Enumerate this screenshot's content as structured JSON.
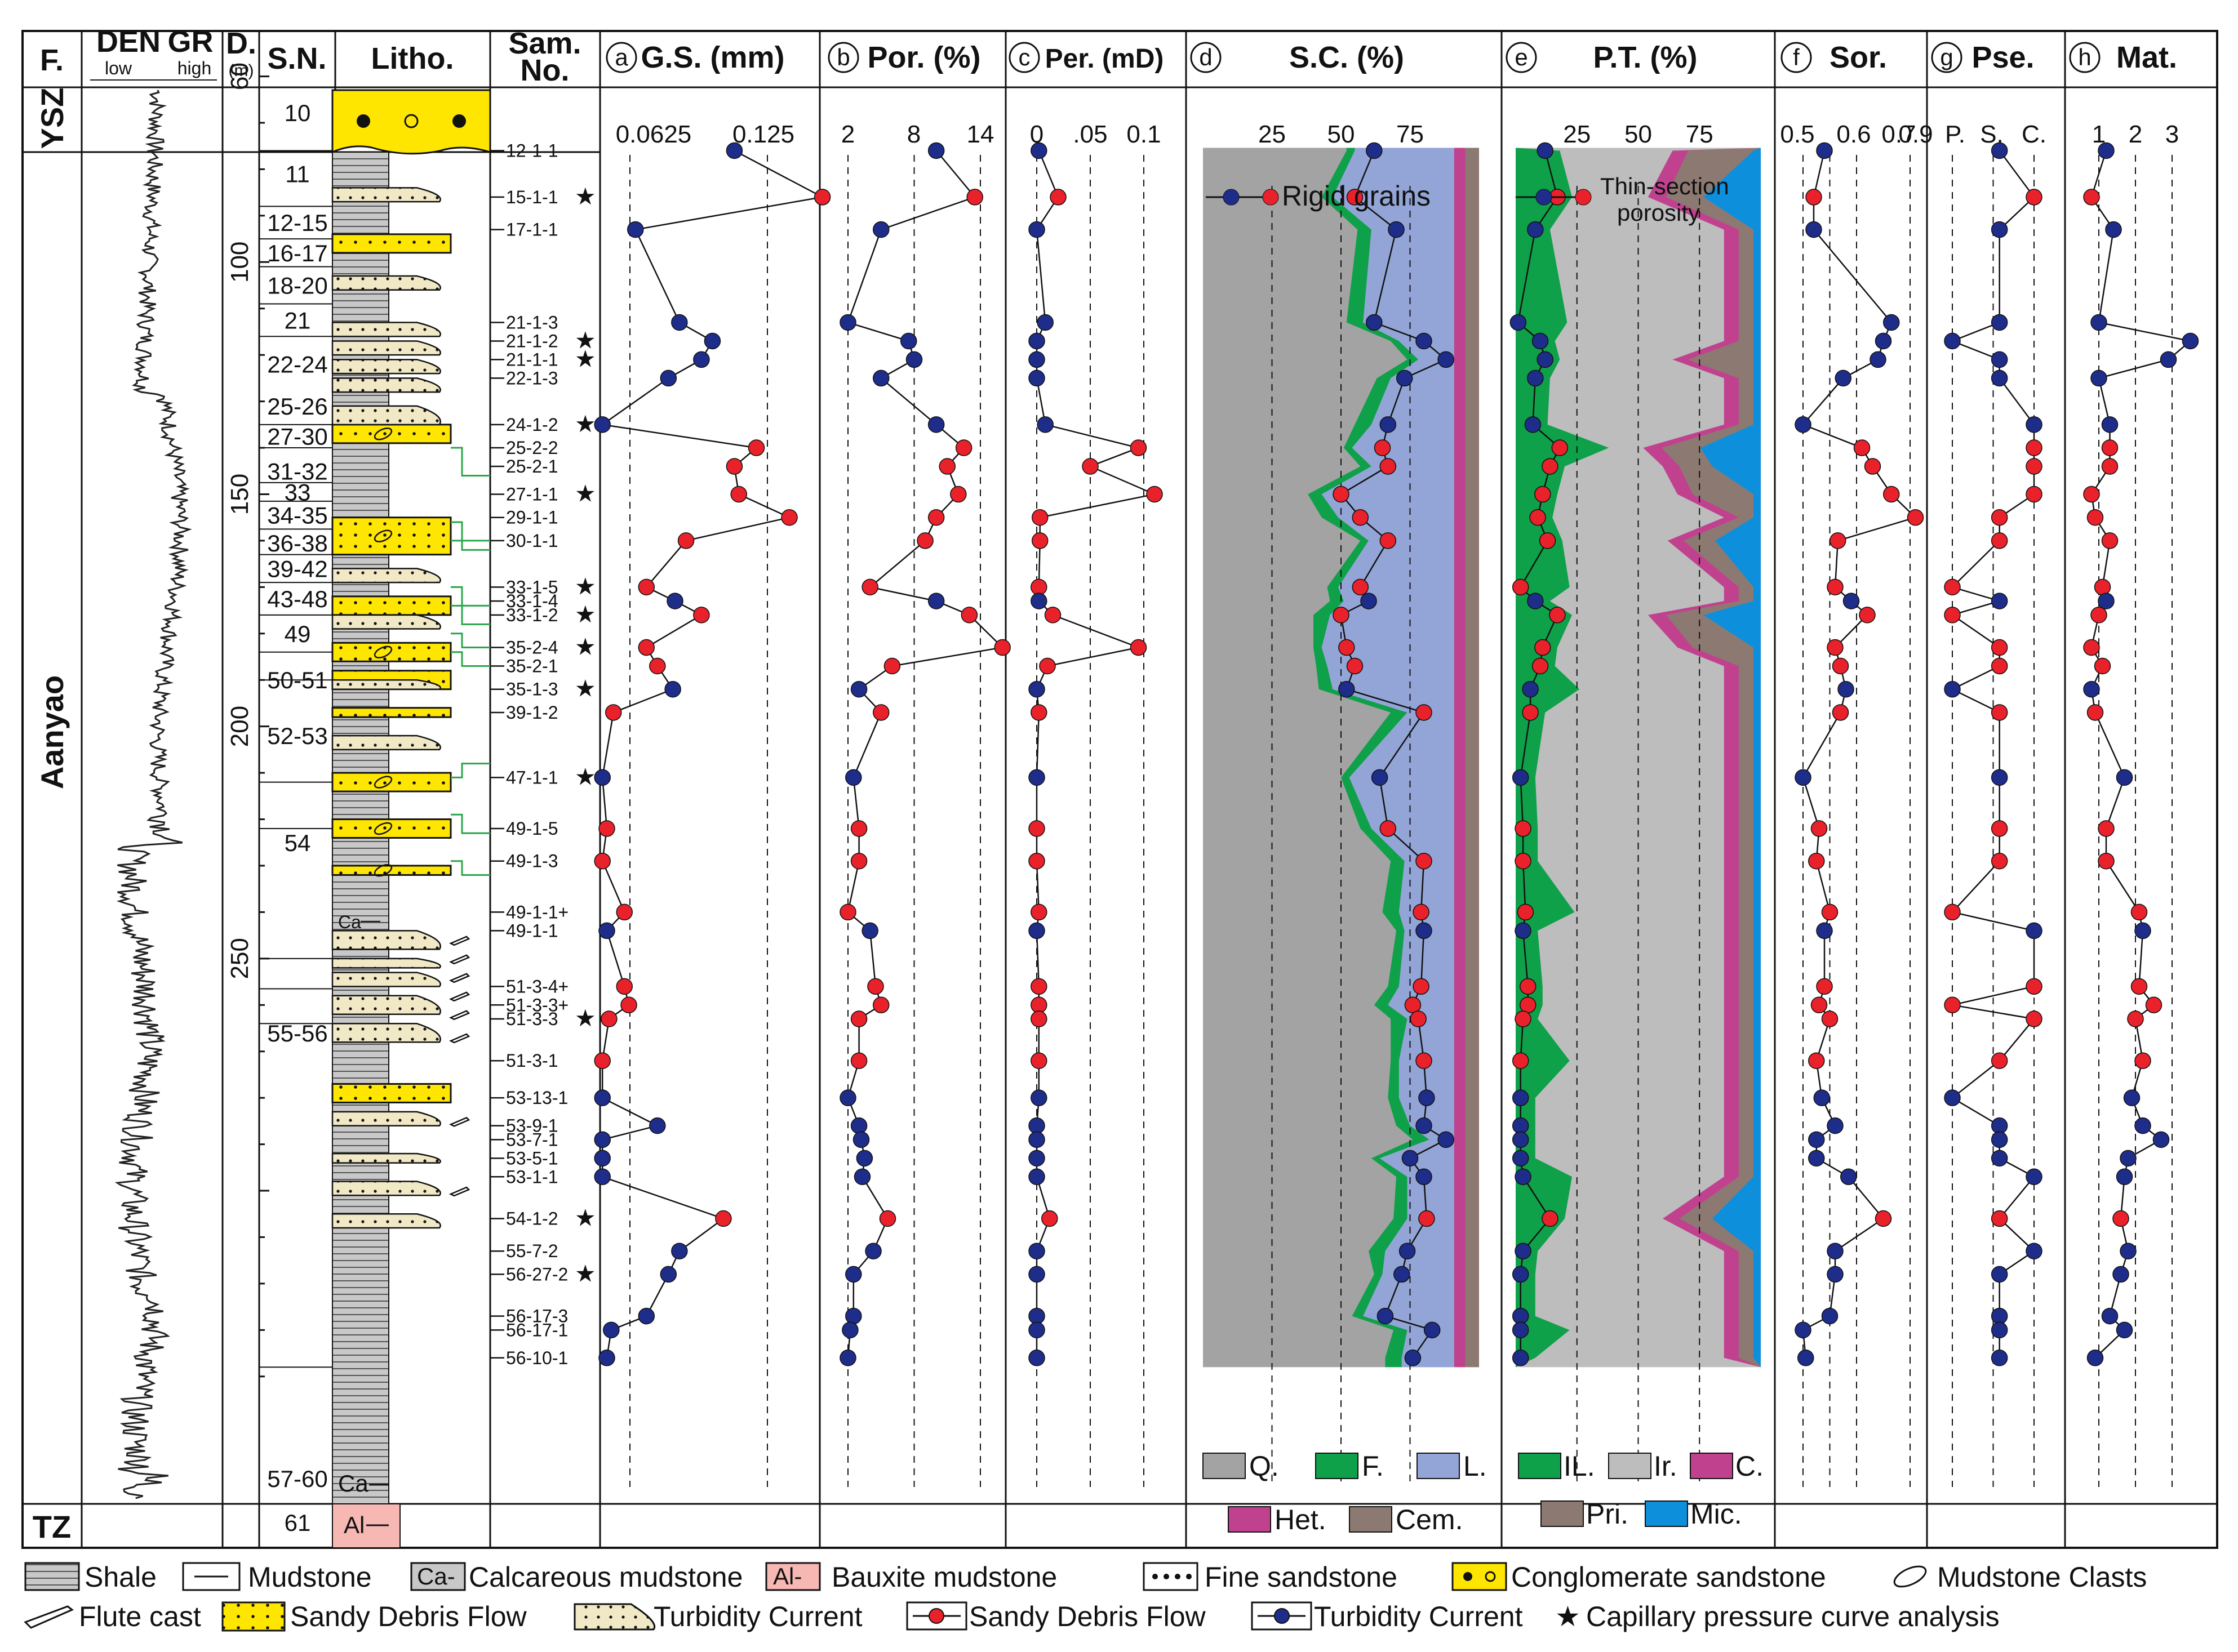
{
  "header": {
    "formation": "F.",
    "den": "DEN",
    "gr": "GR",
    "low": "low",
    "high": "high",
    "depth": "D.",
    "depth_unit": "(m)",
    "sn": "S.N.",
    "litho": "Litho.",
    "sample1": "Sam.",
    "sample2": "No.",
    "gs": {
      "letter": "a",
      "title": "G.S. (mm)"
    },
    "por": {
      "letter": "b",
      "title": "Por. (%)"
    },
    "per": {
      "letter": "c",
      "title": "Per. (mD)"
    },
    "sc": {
      "letter": "d",
      "title": "S.C. (%)"
    },
    "pt": {
      "letter": "e",
      "title": "P.T. (%)"
    },
    "sor": {
      "letter": "f",
      "title": "Sor."
    },
    "pse": {
      "letter": "g",
      "title": "Pse."
    },
    "mat": {
      "letter": "h",
      "title": "Mat."
    }
  },
  "formations": [
    {
      "name": "YSZ"
    },
    {
      "name": "Aanyao"
    },
    {
      "name": "TZ"
    }
  ],
  "tick_labels": {
    "gs": [
      "0.0625",
      "0.125"
    ],
    "por": [
      "2",
      "8",
      "14"
    ],
    "per": [
      "0",
      ".05",
      "0.1"
    ],
    "sc": [
      "25",
      "50",
      "75"
    ],
    "pt": [
      "25",
      "50",
      "75"
    ],
    "sor": [
      "0.5",
      "0.6",
      "0.7",
      "0.9"
    ],
    "pse": [
      "P.",
      "S.",
      "C."
    ],
    "mat": [
      "1",
      "2",
      "3"
    ],
    "depth": [
      "60",
      "100",
      "150",
      "200",
      "250"
    ]
  },
  "sn_labels": [
    "10",
    "11",
    "12-15",
    "16-17",
    "18-20",
    "21",
    "22-24",
    "25-26",
    "27-30",
    "31-32",
    "33",
    "34-35",
    "36-38",
    "39-42",
    "43-48",
    "49",
    "50-51",
    "52-53",
    "54",
    "55-56",
    "57-60",
    "61"
  ],
  "litho_text": {
    "ca": "Ca",
    "al": "Al"
  },
  "samples": [
    "12-1-1",
    "15-1-1",
    "17-1-1",
    "21-1-3",
    "21-1-2",
    "21-1-1",
    "22-1-3",
    "24-1-2",
    "25-2-2",
    "25-2-1",
    "27-1-1",
    "29-1-1",
    "30-1-1",
    "33-1-5",
    "33-1-4",
    "33-1-2",
    "35-2-4",
    "35-2-1",
    "35-1-3",
    "39-1-2",
    "47-1-1",
    "49-1-5",
    "49-1-3",
    "49-1-1+",
    "49-1-1",
    "51-3-4+",
    "51-3-3+",
    "51-3-3",
    "51-3-1",
    "53-13-1",
    "53-9-1",
    "53-7-1",
    "53-5-1",
    "53-1-1",
    "54-1-2",
    "55-7-2",
    "56-27-2",
    "56-17-3",
    "56-17-1",
    "56-10-1"
  ],
  "star_glyph": "★",
  "panel_legends": {
    "rigid": "Rigid grains",
    "thin1": "Thin-section",
    "thin2": "porosity",
    "sc_items": [
      "Q.",
      "F.",
      "L.",
      "Het.",
      "Cem."
    ],
    "pt_items": [
      "IL.",
      "Ir.",
      "C.",
      "Pri.",
      "Mic."
    ]
  },
  "legend": {
    "row1": [
      "Shale",
      "Mudstone",
      "Calcareous mudstone",
      "Bauxite mudstone",
      "Fine sandstone",
      "Conglomerate sandstone",
      "Mudstone Clasts"
    ],
    "row2": [
      "Flute cast",
      "Sandy Debris Flow",
      "Turbidity Current",
      "Sandy Debris Flow",
      "Turbidity Current",
      "Capillary pressure curve analysis"
    ],
    "ca_box": "Ca-",
    "al_box": "Al-"
  },
  "colors": {
    "sdf_red": "#e8212a",
    "tc_blue": "#1f2d8a",
    "sand_yellow": "#ffe600",
    "turb_fill": "#f1e8c6",
    "shale_gray": "#c8c8c8",
    "bauxite_pink": "#f7b8b4",
    "quartz_gray": "#a3a3a3",
    "feldspar_green": "#0fa04a",
    "lithic_blue": "#93a5d6",
    "het_magenta": "#c0428f",
    "cem_brown": "#8c7a72",
    "ir_gray": "#bdbdbd",
    "mic_blue": "#0d8fdb",
    "connector_green": "#2aa64a"
  },
  "chart_data": {
    "type": "line",
    "depth_m": [
      76,
      86,
      93,
      113,
      117,
      121,
      125,
      135,
      140,
      144,
      150,
      155,
      160,
      170,
      173,
      176,
      183,
      187,
      192,
      197,
      211,
      222,
      229,
      240,
      244,
      256,
      260,
      263,
      272,
      280,
      286,
      289,
      293,
      297,
      306,
      313,
      318,
      327,
      330,
      336
    ],
    "facies": [
      "TC",
      "SDF",
      "TC",
      "TC",
      "TC",
      "TC",
      "TC",
      "TC",
      "SDF",
      "SDF",
      "SDF",
      "SDF",
      "SDF",
      "SDF",
      "TC",
      "SDF",
      "SDF",
      "SDF",
      "TC",
      "SDF",
      "TC",
      "SDF",
      "SDF",
      "SDF",
      "TC",
      "SDF",
      "SDF",
      "SDF",
      "SDF",
      "TC",
      "TC",
      "TC",
      "TC",
      "TC",
      "SDF",
      "TC",
      "TC",
      "TC",
      "TC",
      "TC"
    ],
    "grain_size_mm": [
      0.11,
      0.15,
      0.065,
      0.085,
      0.1,
      0.095,
      0.08,
      0.05,
      0.12,
      0.11,
      0.112,
      0.135,
      0.088,
      0.07,
      0.083,
      0.095,
      0.07,
      0.075,
      0.082,
      0.055,
      0.05,
      0.052,
      0.05,
      0.06,
      0.052,
      0.06,
      0.062,
      0.053,
      0.05,
      0.05,
      0.075,
      0.05,
      0.05,
      0.05,
      0.105,
      0.085,
      0.08,
      0.07,
      0.054,
      0.052
    ],
    "porosity_pct": [
      10,
      13.5,
      5,
      2,
      7.5,
      8,
      5,
      10,
      12.5,
      11,
      12,
      10,
      9,
      4,
      10,
      13,
      16,
      6,
      3,
      5,
      2.5,
      3,
      3,
      2,
      4,
      4.5,
      5,
      3,
      3,
      2,
      3,
      3.2,
      3.5,
      3.3,
      5.6,
      4.3,
      2.5,
      2.5,
      2.2,
      2
    ],
    "permeability_md": [
      0.002,
      0.02,
      0.0,
      0.008,
      0.0,
      0.0,
      0.0,
      0.008,
      0.095,
      0.05,
      0.11,
      0.003,
      0.003,
      0.002,
      0.002,
      0.015,
      0.095,
      0.01,
      0.0,
      0.002,
      0.0,
      0.0,
      0.0,
      0.002,
      0.0,
      0.002,
      0.002,
      0.002,
      0.002,
      0.002,
      0.0,
      0.0,
      0.0,
      0.0,
      0.012,
      0.0,
      0.0,
      0.0,
      0.0,
      0.0
    ],
    "rigid_grains_pct": [
      62,
      55,
      70,
      62,
      80,
      88,
      73,
      67,
      65,
      67,
      50,
      57,
      67,
      57,
      60,
      50,
      52,
      55,
      52,
      80,
      64,
      67,
      80,
      79,
      80,
      79,
      76,
      78,
      80,
      81,
      80,
      88,
      75,
      80,
      81,
      74,
      72,
      66,
      83,
      76
    ],
    "thin_section_porosity_pct": [
      12,
      17,
      8,
      1,
      10,
      12,
      8,
      7,
      18,
      14,
      11,
      9,
      13,
      2,
      8,
      17,
      11,
      10,
      6,
      6,
      2,
      3,
      3,
      4,
      3,
      5,
      5,
      3,
      2,
      2,
      2,
      2,
      2,
      3,
      14,
      3,
      2,
      2,
      2,
      2
    ],
    "sorting": [
      0.58,
      0.54,
      0.54,
      0.83,
      0.8,
      0.78,
      0.65,
      0.5,
      0.72,
      0.76,
      0.83,
      0.92,
      0.63,
      0.62,
      0.68,
      0.74,
      0.62,
      0.64,
      0.66,
      0.64,
      0.5,
      0.56,
      0.55,
      0.6,
      0.58,
      0.58,
      0.56,
      0.6,
      0.55,
      0.57,
      0.62,
      0.55,
      0.55,
      0.67,
      0.8,
      0.62,
      0.62,
      0.6,
      0.5,
      0.51
    ],
    "pseudomatrix": [
      1.5,
      2.6,
      1.5,
      1.5,
      0.0,
      1.5,
      1.5,
      2.6,
      2.6,
      2.6,
      2.6,
      1.5,
      1.5,
      0.0,
      1.5,
      0.0,
      1.5,
      1.5,
      0.0,
      1.5,
      1.5,
      1.5,
      1.5,
      0.0,
      2.6,
      2.6,
      0.0,
      2.6,
      1.5,
      0.0,
      1.5,
      1.5,
      1.5,
      2.6,
      1.5,
      2.6,
      1.5,
      1.5,
      1.5,
      1.5
    ],
    "maturity": [
      1.2,
      0.8,
      1.4,
      1.0,
      3.5,
      2.9,
      1.0,
      1.3,
      1.3,
      1.3,
      0.8,
      0.9,
      1.3,
      1.1,
      1.2,
      1.0,
      0.8,
      1.1,
      0.8,
      0.9,
      1.7,
      1.2,
      1.2,
      2.1,
      2.2,
      2.1,
      2.5,
      2.0,
      2.2,
      1.9,
      2.2,
      2.7,
      1.8,
      1.7,
      1.6,
      1.8,
      1.6,
      1.3,
      1.7,
      0.9
    ]
  },
  "gr_signal_seed": 7
}
